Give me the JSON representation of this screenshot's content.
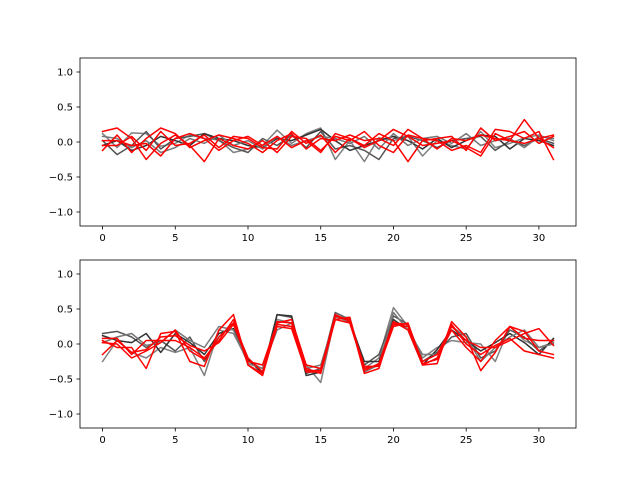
{
  "figure": {
    "background": "#ffffff"
  },
  "chart_data": [
    {
      "type": "line",
      "xlim": [
        -1.55,
        32.55
      ],
      "ylim": [
        -1.2,
        1.2
      ],
      "xticks": [
        0,
        5,
        10,
        15,
        20,
        25,
        30
      ],
      "yticks": [
        -1.0,
        -0.5,
        0.0,
        0.5,
        1.0
      ],
      "xtick_labels": [
        "0",
        "5",
        "10",
        "15",
        "20",
        "25",
        "30"
      ],
      "ytick_labels": [
        "−1.0",
        "−0.5",
        "0.0",
        "0.5",
        "1.0"
      ],
      "x": [
        0,
        1,
        2,
        3,
        4,
        5,
        6,
        7,
        8,
        9,
        10,
        11,
        12,
        13,
        14,
        15,
        16,
        17,
        18,
        19,
        20,
        21,
        22,
        23,
        24,
        25,
        26,
        27,
        28,
        29,
        30,
        31
      ],
      "series": [
        {
          "color": "#808080",
          "values": [
            0.12,
            -0.08,
            0.13,
            0.12,
            -0.06,
            -0.02,
            0.1,
            0.05,
            0.03,
            -0.15,
            -0.1,
            -0.05,
            0.17,
            -0.02,
            0.12,
            0.2,
            -0.25,
            0.02,
            -0.28,
            0.06,
            0.02,
            0.08,
            -0.2,
            0.02,
            -0.05,
            -0.1,
            0.15,
            -0.08,
            -0.02,
            0.06,
            0.1,
            0.02
          ]
        },
        {
          "color": "#555555",
          "values": [
            0.02,
            -0.18,
            -0.05,
            0.15,
            -0.1,
            0.05,
            0.08,
            0.12,
            0.02,
            -0.08,
            -0.15,
            0.05,
            -0.05,
            0.1,
            -0.08,
            0.15,
            -0.1,
            -0.05,
            -0.12,
            -0.25,
            0.05,
            0.08,
            0.02,
            -0.08,
            0.02,
            0.05,
            0.08,
            -0.12,
            0.02,
            -0.05,
            0.05,
            -0.02
          ]
        },
        {
          "color": "#333333",
          "values": [
            -0.05,
            0.02,
            -0.12,
            -0.05,
            0.08,
            0.02,
            -0.05,
            0.12,
            0.05,
            0.02,
            -0.05,
            -0.08,
            0.05,
            0.02,
            0.1,
            0.18,
            0.02,
            -0.12,
            -0.05,
            0.02,
            0.08,
            0.02,
            -0.1,
            0.05,
            -0.08,
            0.02,
            0.1,
            0.08,
            -0.1,
            0.05,
            0.02,
            -0.05
          ]
        },
        {
          "color": "#777777",
          "values": [
            0.08,
            0.05,
            -0.08,
            0.02,
            -0.15,
            -0.08,
            0.05,
            -0.02,
            0.1,
            -0.05,
            0.02,
            -0.1,
            0.08,
            -0.05,
            0.02,
            0.08,
            0.05,
            -0.02,
            0.08,
            -0.1,
            0.12,
            -0.05,
            0.05,
            0.08,
            -0.02,
            0.12,
            -0.05,
            0.02,
            0.05,
            -0.08,
            0.08,
            0.05
          ]
        },
        {
          "color": "#ff0000",
          "values": [
            0.15,
            0.2,
            0.05,
            -0.25,
            -0.02,
            0.1,
            -0.05,
            -0.28,
            0.05,
            -0.05,
            -0.1,
            0.02,
            -0.15,
            0.08,
            0.05,
            -0.12,
            0.08,
            0.02,
            0.15,
            -0.05,
            -0.15,
            0.1,
            0.05,
            0.02,
            -0.12,
            -0.05,
            -0.15,
            0.18,
            0.15,
            0.05,
            0.15,
            -0.25
          ]
        },
        {
          "color": "#ff0000",
          "values": [
            -0.12,
            0.1,
            -0.15,
            0.05,
            0.2,
            0.12,
            -0.08,
            0.02,
            0.1,
            0.05,
            -0.02,
            -0.15,
            0.02,
            0.12,
            -0.1,
            0.05,
            0.02,
            0.1,
            0.02,
            0.05,
            -0.05,
            0.18,
            0.05,
            -0.1,
            0.05,
            0.02,
            0.1,
            0.05,
            0.02,
            0.32,
            0.05,
            -0.08
          ]
        },
        {
          "color": "#ff0000",
          "values": [
            -0.05,
            -0.05,
            0.08,
            -0.12,
            0.15,
            -0.05,
            -0.02,
            0.1,
            -0.08,
            0.08,
            0.05,
            -0.08,
            -0.1,
            0.15,
            -0.02,
            0.1,
            -0.15,
            0.05,
            -0.05,
            0.12,
            0.02,
            -0.28,
            0.02,
            0.05,
            0.08,
            -0.12,
            0.2,
            0.02,
            0.08,
            0.15,
            -0.02,
            0.08
          ]
        },
        {
          "color": "#ff0000",
          "values": [
            0.02,
            0.02,
            -0.05,
            -0.02,
            -0.2,
            0.05,
            0.12,
            0.05,
            -0.12,
            0.02,
            0.08,
            -0.05,
            0.08,
            -0.08,
            0.02,
            -0.15,
            0.12,
            0.05,
            -0.08,
            0.02,
            0.18,
            0.08,
            -0.05,
            -0.02,
            0.02,
            -0.08,
            -0.2,
            0.12,
            0.02,
            -0.02,
            0.05,
            0.1
          ]
        }
      ]
    },
    {
      "type": "line",
      "xlim": [
        -1.55,
        32.55
      ],
      "ylim": [
        -1.2,
        1.2
      ],
      "xticks": [
        0,
        5,
        10,
        15,
        20,
        25,
        30
      ],
      "yticks": [
        -1.0,
        -0.5,
        0.0,
        0.5,
        1.0
      ],
      "xtick_labels": [
        "0",
        "5",
        "10",
        "15",
        "20",
        "25",
        "30"
      ],
      "ytick_labels": [
        "−1.0",
        "−0.5",
        "0.0",
        "0.5",
        "1.0"
      ],
      "x": [
        0,
        1,
        2,
        3,
        4,
        5,
        6,
        7,
        8,
        9,
        10,
        11,
        12,
        13,
        14,
        15,
        16,
        17,
        18,
        19,
        20,
        21,
        22,
        23,
        24,
        25,
        26,
        27,
        28,
        29,
        30,
        31
      ],
      "series": [
        {
          "color": "#808080",
          "values": [
            -0.25,
            0.05,
            -0.12,
            -0.2,
            -0.05,
            -0.12,
            -0.05,
            -0.45,
            0.2,
            0.15,
            -0.25,
            -0.35,
            0.35,
            0.3,
            -0.3,
            -0.55,
            0.4,
            0.3,
            -0.35,
            -0.2,
            0.52,
            0.25,
            -0.2,
            -0.05,
            0.05,
            0.02,
            0.0,
            -0.25,
            0.25,
            0.05,
            -0.05,
            0.02
          ]
        },
        {
          "color": "#555555",
          "values": [
            0.15,
            0.18,
            0.1,
            -0.05,
            0.05,
            -0.1,
            0.1,
            -0.25,
            0.1,
            0.3,
            -0.2,
            -0.4,
            0.42,
            0.38,
            -0.42,
            -0.35,
            0.45,
            0.35,
            -0.3,
            -0.15,
            0.4,
            0.28,
            -0.25,
            -0.12,
            0.1,
            0.15,
            -0.2,
            -0.1,
            0.2,
            0.1,
            -0.1,
            0.05
          ]
        },
        {
          "color": "#333333",
          "values": [
            0.12,
            0.05,
            0.02,
            0.15,
            -0.12,
            0.15,
            0.02,
            -0.15,
            0.15,
            0.22,
            -0.22,
            -0.42,
            0.42,
            0.4,
            -0.45,
            -0.4,
            0.42,
            0.32,
            -0.25,
            -0.25,
            0.35,
            0.2,
            -0.3,
            -0.08,
            0.2,
            0.05,
            -0.1,
            0.02,
            0.15,
            0.02,
            -0.15,
            0.08
          ]
        },
        {
          "color": "#777777",
          "values": [
            0.02,
            0.1,
            0.15,
            -0.02,
            0.02,
            0.2,
            0.05,
            -0.05,
            0.25,
            0.2,
            -0.28,
            -0.35,
            0.2,
            0.3,
            -0.35,
            -0.3,
            0.38,
            0.38,
            -0.4,
            -0.3,
            0.45,
            0.2,
            -0.15,
            -0.15,
            0.25,
            0.1,
            -0.25,
            -0.05,
            0.1,
            0.2,
            -0.05,
            0.0
          ]
        },
        {
          "color": "#ff0000",
          "values": [
            0.05,
            -0.05,
            -0.05,
            -0.35,
            0.15,
            0.18,
            -0.25,
            -0.32,
            0.2,
            0.42,
            -0.3,
            -0.42,
            0.25,
            0.22,
            -0.4,
            -0.4,
            0.4,
            0.35,
            -0.42,
            -0.35,
            0.3,
            0.28,
            -0.3,
            -0.28,
            0.32,
            0.1,
            -0.38,
            -0.12,
            0.25,
            0.18,
            -0.1,
            -0.15
          ]
        },
        {
          "color": "#ff0000",
          "values": [
            0.08,
            0.08,
            -0.15,
            0.05,
            0.05,
            0.05,
            -0.05,
            -0.2,
            0.05,
            0.35,
            -0.3,
            -0.45,
            0.28,
            0.25,
            -0.35,
            -0.42,
            0.35,
            0.3,
            -0.35,
            -0.3,
            0.28,
            0.25,
            -0.25,
            -0.15,
            0.25,
            0.05,
            -0.05,
            -0.05,
            0.05,
            0.15,
            0.22,
            -0.02
          ]
        },
        {
          "color": "#ff0000",
          "values": [
            -0.15,
            0.05,
            -0.12,
            -0.08,
            0.1,
            0.12,
            -0.02,
            -0.1,
            0.02,
            0.28,
            -0.25,
            -0.3,
            0.3,
            0.35,
            -0.3,
            -0.35,
            0.35,
            0.38,
            -0.38,
            -0.28,
            0.32,
            0.2,
            -0.3,
            -0.2,
            0.2,
            -0.05,
            -0.25,
            0.05,
            0.25,
            0.08,
            0.05,
            0.05
          ]
        },
        {
          "color": "#ff0000",
          "values": [
            0.02,
            0.0,
            -0.2,
            -0.1,
            0.02,
            0.2,
            -0.1,
            -0.22,
            0.1,
            0.3,
            -0.2,
            -0.4,
            0.32,
            0.3,
            -0.38,
            -0.38,
            0.42,
            0.32,
            -0.32,
            -0.32,
            0.25,
            0.3,
            -0.28,
            -0.22,
            0.28,
            0.0,
            -0.15,
            -0.02,
            0.08,
            -0.1,
            -0.15,
            -0.2
          ]
        }
      ]
    }
  ]
}
